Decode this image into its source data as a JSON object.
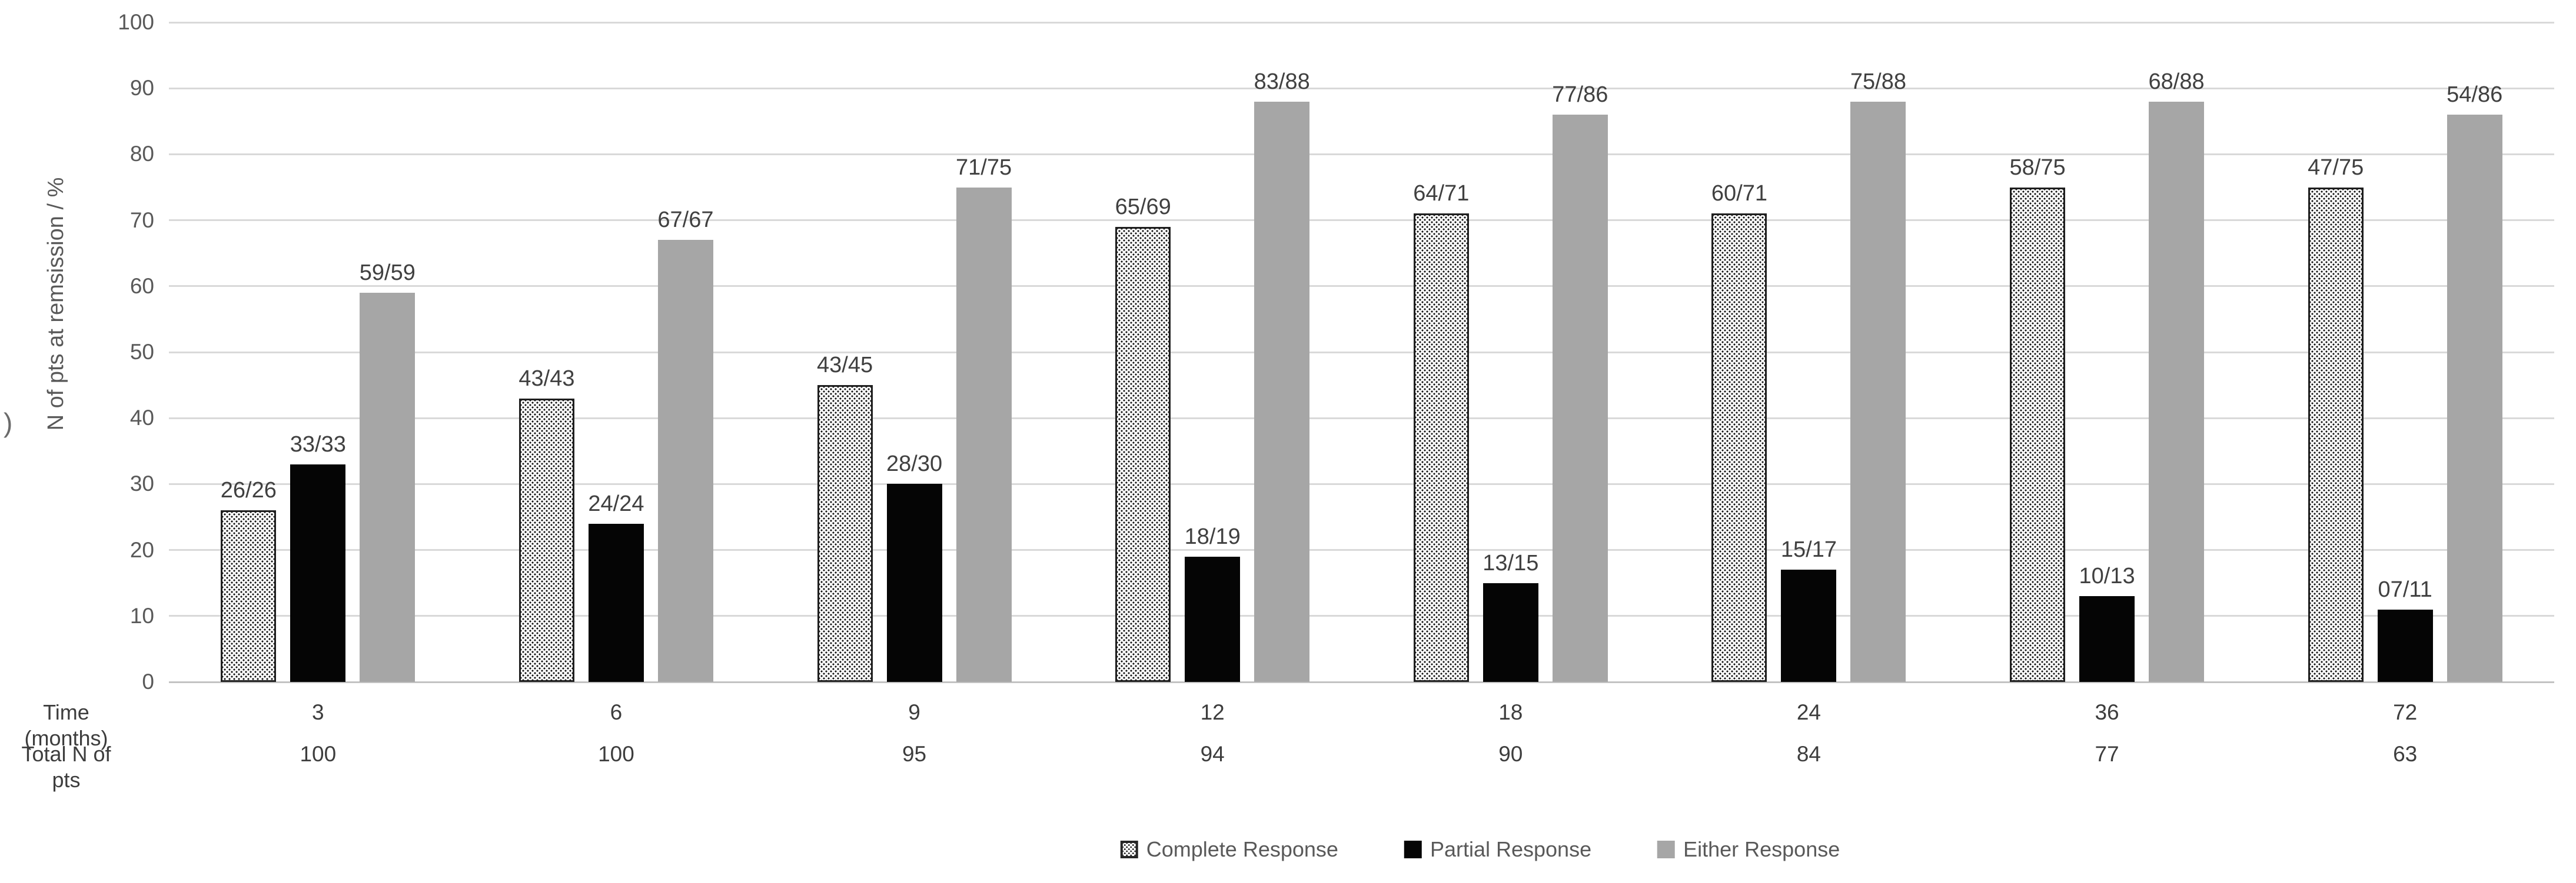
{
  "figure": {
    "stray_glyph": ")",
    "background": "#ffffff"
  },
  "colors": {
    "grid": "#d9d9d9",
    "axis_text": "#595959",
    "label_text": "#404040",
    "series_complete_fill": "dotted-black-on-white",
    "series_partial": "#050505",
    "series_either": "#a6a6a6"
  },
  "chart_data": {
    "type": "bar",
    "title": "",
    "xlabel": "",
    "ylabel": "N of pts at remsission / %",
    "ylim": [
      0,
      100
    ],
    "y_ticks": [
      0,
      10,
      20,
      30,
      40,
      50,
      60,
      70,
      80,
      90,
      100
    ],
    "grid": true,
    "legend_position": "bottom-center",
    "categories": [
      "3",
      "6",
      "9",
      "12",
      "18",
      "24",
      "36",
      "72"
    ],
    "category_row_label": "Time (months)",
    "totals_row_label": "Total N of pts",
    "totals": [
      "100",
      "100",
      "95",
      "94",
      "90",
      "84",
      "77",
      "63"
    ],
    "series": [
      {
        "name": "Complete Response",
        "style": "dotted",
        "values": [
          26,
          43,
          45,
          69,
          71,
          71,
          75,
          75
        ],
        "bar_labels": [
          "26/26",
          "43/43",
          "43/45",
          "65/69",
          "64/71",
          "60/71",
          "58/75",
          "47/75"
        ]
      },
      {
        "name": "Partial Response",
        "style": "black",
        "values": [
          33,
          24,
          30,
          19,
          15,
          17,
          13,
          11
        ],
        "bar_labels": [
          "33/33",
          "24/24",
          "28/30",
          "18/19",
          "13/15",
          "15/17",
          "10/13",
          "07/11"
        ]
      },
      {
        "name": "Either Response",
        "style": "gray",
        "values": [
          59,
          67,
          75,
          88,
          86,
          88,
          88,
          86
        ],
        "bar_labels": [
          "59/59",
          "67/67",
          "71/75",
          "83/88",
          "77/86",
          "75/88",
          "68/88",
          "54/86"
        ]
      }
    ]
  },
  "legend": {
    "items": [
      {
        "label": "Complete Response",
        "style": "dotted"
      },
      {
        "label": "Partial Response",
        "style": "black"
      },
      {
        "label": "Either Response",
        "style": "gray"
      }
    ]
  }
}
